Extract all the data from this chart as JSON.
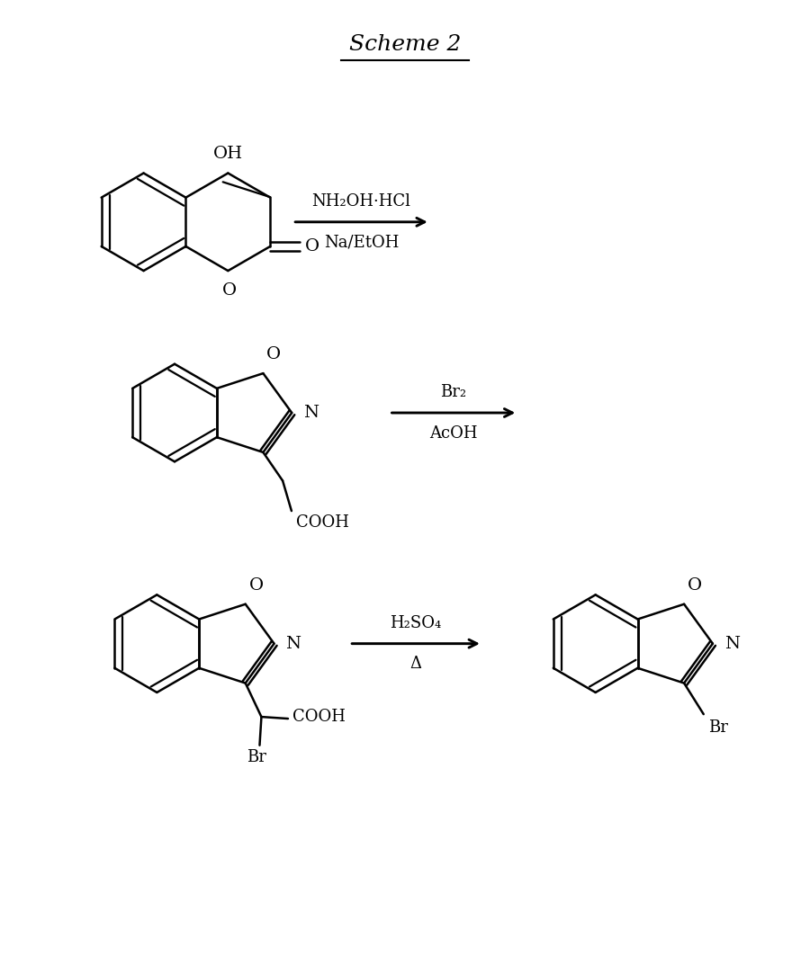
{
  "title": "Scheme 2",
  "title_fontsize": 18,
  "title_underline": true,
  "background_color": "#ffffff",
  "line_color": "#000000",
  "text_color": "#000000",
  "line_width": 1.8,
  "font_size": 13,
  "fig_width": 9.0,
  "fig_height": 10.73,
  "reactions": [
    {
      "reagent_above": "NH₂OH·HCl",
      "reagent_below": "Na/EtOH"
    },
    {
      "reagent_above": "Br₂",
      "reagent_below": "AcOH"
    },
    {
      "reagent_above": "H₂SO₄",
      "reagent_below": "Δ"
    }
  ]
}
